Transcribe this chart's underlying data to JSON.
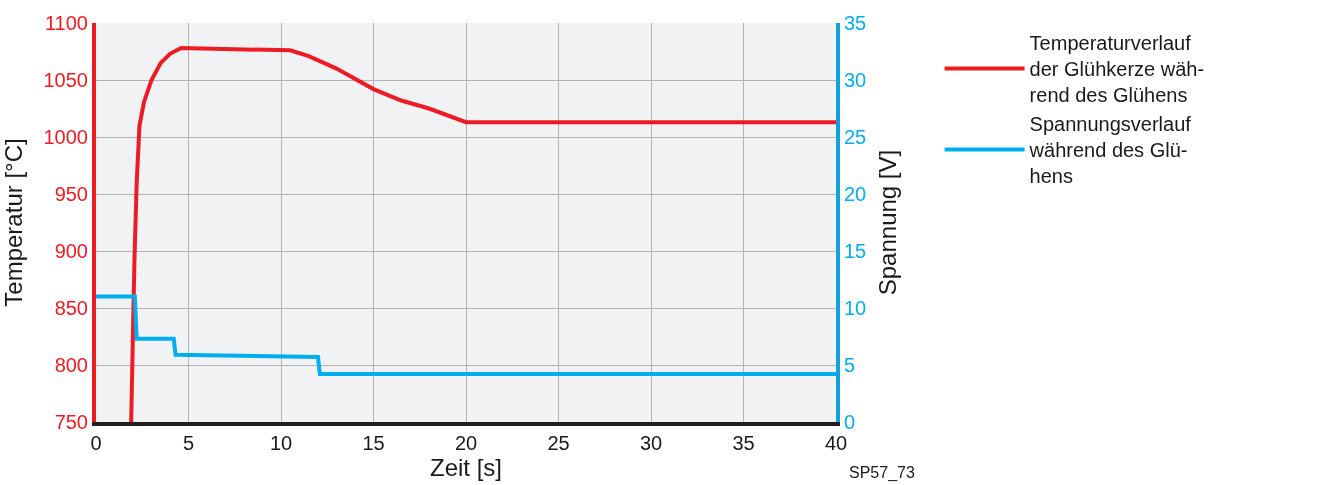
{
  "chart_data": {
    "type": "line",
    "xlabel": "Zeit [s]",
    "ylabel": "Temperatur [°C]",
    "y2label": "Spannung [V]",
    "xlim": [
      0,
      40
    ],
    "xticks": [
      0,
      5,
      10,
      15,
      20,
      25,
      30,
      35,
      40
    ],
    "ylim": [
      750,
      1100
    ],
    "yticks": [
      750,
      800,
      850,
      900,
      950,
      1000,
      1050,
      1100
    ],
    "y2lim": [
      0,
      35
    ],
    "y2ticks": [
      0,
      5,
      10,
      15,
      20,
      25,
      30,
      35
    ],
    "grid": true,
    "legend": "right",
    "line_style": "solid",
    "marker": "none",
    "annotations": [
      "SP57_73"
    ],
    "series": [
      {
        "name": "Temperaturverlauf\nder Glühkerze wäh-\nrend des Glühens",
        "color": "#ed1c24",
        "x": [
          1.9,
          2.08,
          2.2,
          2.35,
          2.6,
          3.0,
          3.5,
          4.0,
          4.6,
          10.5,
          11.5,
          13,
          15,
          16.5,
          18,
          20,
          40
        ],
        "values": [
          750,
          893,
          960,
          1010,
          1031,
          1050,
          1065,
          1073,
          1078,
          1076,
          1071,
          1060,
          1042,
          1032,
          1025,
          1013,
          1013
        ]
      },
      {
        "name": "Spannungsverlauf\nwährend des Glü-\nhens",
        "color": "#00aeef",
        "axis": "y2",
        "x": [
          0,
          2.1,
          2.2,
          4.2,
          4.3,
          12,
          12.1,
          40
        ],
        "values": [
          11,
          11,
          7.3,
          7.3,
          5.9,
          5.7,
          4.2,
          4.2
        ]
      }
    ]
  }
}
